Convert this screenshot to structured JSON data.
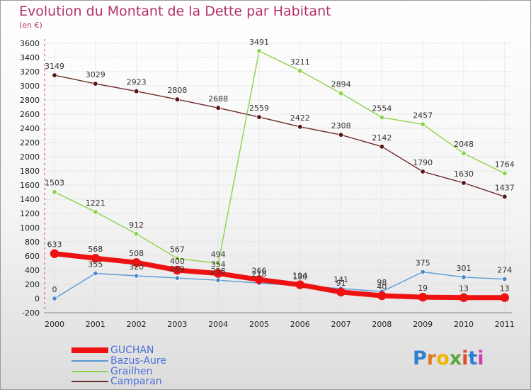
{
  "header": {
    "title": "Evolution du Montant de la Dette par Habitant",
    "subtitle": "(en €)"
  },
  "colors": {
    "GUCHAN": "#ee1111",
    "Bazus-Aure": "#5b9ad5",
    "Grailhen": "#8ed24a",
    "Camparan": "#6b2a2a",
    "title": "#b3306a",
    "legend_text": "#4a6fd8"
  },
  "brand": {
    "logo_text": "Proxiti"
  },
  "chart_data": {
    "type": "line",
    "title": "Evolution du Montant de la Dette par Habitant",
    "subtitle": "(en €)",
    "xlabel": "",
    "ylabel": "",
    "ylim": [
      -200,
      3600
    ],
    "ytick_step": 200,
    "grid": true,
    "legend_position": "bottom-left",
    "x": [
      "2000",
      "2001",
      "2002",
      "2003",
      "2004",
      "2005",
      "2006",
      "2007",
      "2008",
      "2009",
      "2010",
      "2011"
    ],
    "series": [
      {
        "name": "GUCHAN",
        "values": [
          633,
          568,
          508,
          400,
          354,
          266,
          194,
          91,
          40,
          19,
          13,
          13
        ]
      },
      {
        "name": "Bazus-Aure",
        "values": [
          0,
          355,
          320,
          289,
          258,
          218,
          180,
          141,
          98,
          375,
          301,
          274
        ]
      },
      {
        "name": "Grailhen",
        "values": [
          1503,
          1221,
          912,
          567,
          494,
          3491,
          3211,
          2894,
          2554,
          2457,
          2048,
          1764
        ]
      },
      {
        "name": "Camparan",
        "values": [
          3149,
          3029,
          2923,
          2808,
          2688,
          2559,
          2422,
          2308,
          2142,
          1790,
          1630,
          1437
        ]
      }
    ]
  }
}
